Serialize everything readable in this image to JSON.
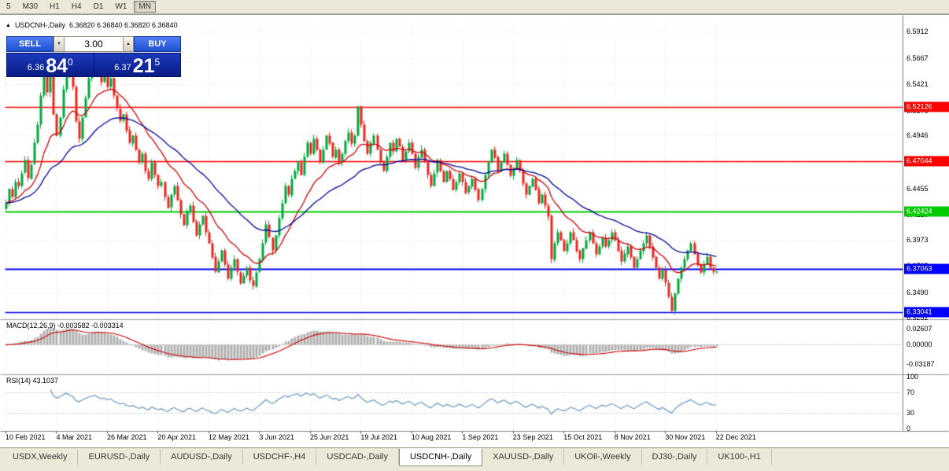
{
  "toolbar": {
    "timeframes": [
      "5",
      "M30",
      "H1",
      "H4",
      "D1",
      "W1",
      "MN"
    ],
    "active": "MN"
  },
  "chart": {
    "expand_icon": "▲",
    "title": "USDCNH-,Daily",
    "ohlc": "6.36820 6.36840 6.36820 6.36840"
  },
  "trade_panel": {
    "sell_label": "SELL",
    "buy_label": "BUY",
    "lot_value": "3.00",
    "spin_down_icon": "▼",
    "spin_up_icon": "▲",
    "sell_price": {
      "small": "6.36",
      "big": "84",
      "sup": "0"
    },
    "buy_price": {
      "small": "6.37",
      "big": "21",
      "sup": "5"
    }
  },
  "price_axis": {
    "ticks": [
      "6.5912",
      "6.5667",
      "6.5421",
      "6.5176",
      "6.4946",
      "6.4701",
      "6.4455",
      "6.4210",
      "6.3973",
      "6.3735",
      "6.3490",
      "6.3252"
    ]
  },
  "colors": {
    "up_candle": "#00a73c",
    "down_candle": "#e8261f",
    "ma_fast": "#cc0000",
    "ma_slow": "#000099",
    "macd_histogram": "#b0b0b0",
    "macd_signal": "#cc0000",
    "rsi_line": "#5b8dc0",
    "grid": "#e2e2e2"
  },
  "macd_panel": {
    "label": "MACD(12,26,9) -0.003582 -0.003314"
  },
  "rsi_panel": {
    "label": "RSI(14) 43.1037"
  },
  "tabs": [
    {
      "label": "USDX,Weekly",
      "active": false
    },
    {
      "label": "EURUSD-,Daily",
      "active": false
    },
    {
      "label": "AUDUSD-,Daily",
      "active": false
    },
    {
      "label": "USDCHF-,H4",
      "active": false
    },
    {
      "label": "USDCAD-,Daily",
      "active": false
    },
    {
      "label": "USDCNH-,Daily",
      "active": true
    },
    {
      "label": "XAUUSD-,Daily",
      "active": false
    },
    {
      "label": "UKOil-,Weekly",
      "active": false
    },
    {
      "label": "DJ30-,Daily",
      "active": false
    },
    {
      "label": "UK100-,H1",
      "active": false
    }
  ],
  "chart_data": {
    "type": "candlestick",
    "symbol": "USDCNH-",
    "timeframe": "Daily",
    "last_ohlc": {
      "open": "6.36820",
      "high": "6.36840",
      "low": "6.36820",
      "close": "6.36840"
    },
    "ylim": [
      6.3245,
      6.5995
    ],
    "x_labels": [
      "10 Feb 2021",
      "4 Mar 2021",
      "26 Mar 2021",
      "20 Apr 2021",
      "12 May 2021",
      "3 Jun 2021",
      "25 Jun 2021",
      "19 Jul 2021",
      "10 Aug 2021",
      "1 Sep 2021",
      "23 Sep 2021",
      "15 Oct 2021",
      "8 Nov 2021",
      "30 Nov 2021",
      "22 Dec 2021"
    ],
    "candles_per_label": 16,
    "closes": [
      6.432,
      6.445,
      6.438,
      6.452,
      6.448,
      6.46,
      6.472,
      6.455,
      6.468,
      6.488,
      6.505,
      6.532,
      6.565,
      6.535,
      6.555,
      6.515,
      6.495,
      6.512,
      6.538,
      6.565,
      6.552,
      6.54,
      6.508,
      6.492,
      6.512,
      6.53,
      6.548,
      6.562,
      6.57,
      6.558,
      6.545,
      6.552,
      6.54,
      6.548,
      6.532,
      6.52,
      6.509,
      6.515,
      6.5,
      6.488,
      6.495,
      6.482,
      6.47,
      6.478,
      6.462,
      6.455,
      6.47,
      6.458,
      6.448,
      6.452,
      6.438,
      6.428,
      6.44,
      6.448,
      6.435,
      6.422,
      6.412,
      6.425,
      6.43,
      6.415,
      6.402,
      6.412,
      6.42,
      6.405,
      6.395,
      6.382,
      6.368,
      6.378,
      6.388,
      6.375,
      6.362,
      6.372,
      6.38,
      6.368,
      6.358,
      6.365,
      6.372,
      6.36,
      6.355,
      6.368,
      6.38,
      6.395,
      6.412,
      6.4,
      6.388,
      6.402,
      6.418,
      6.432,
      6.448,
      6.44,
      6.455,
      6.462,
      6.47,
      6.458,
      6.475,
      6.488,
      6.478,
      6.492,
      6.482,
      6.47,
      6.482,
      6.495,
      6.488,
      6.475,
      6.482,
      6.47,
      6.478,
      6.49,
      6.498,
      6.488,
      6.495,
      6.522,
      6.505,
      6.49,
      6.478,
      6.488,
      6.495,
      6.482,
      6.47,
      6.462,
      6.475,
      6.488,
      6.48,
      6.492,
      6.485,
      6.472,
      6.48,
      6.488,
      6.478,
      6.465,
      6.475,
      6.482,
      6.47,
      6.458,
      6.448,
      6.46,
      6.472,
      6.462,
      6.452,
      6.462,
      6.455,
      6.445,
      6.452,
      6.46,
      6.452,
      6.442,
      6.448,
      6.455,
      6.445,
      6.435,
      6.445,
      6.458,
      6.47,
      6.482,
      6.475,
      6.462,
      6.47,
      6.478,
      6.468,
      6.458,
      6.465,
      6.472,
      6.462,
      6.45,
      6.44,
      6.448,
      6.455,
      6.445,
      6.432,
      6.44,
      6.43,
      6.42,
      6.38,
      6.395,
      6.405,
      6.398,
      6.388,
      6.395,
      6.405,
      6.398,
      6.388,
      6.38,
      6.39,
      6.398,
      6.405,
      6.395,
      6.385,
      6.392,
      6.4,
      6.392,
      6.398,
      6.405,
      6.398,
      6.388,
      6.378,
      6.385,
      6.392,
      6.382,
      6.372,
      6.38,
      6.388,
      6.395,
      6.402,
      6.392,
      6.382,
      6.372,
      6.362,
      6.37,
      6.358,
      6.345,
      6.332,
      6.348,
      6.362,
      6.372,
      6.38,
      6.388,
      6.395,
      6.385,
      6.375,
      6.368,
      6.375,
      6.382,
      6.372,
      6.3684,
      6.3684
    ],
    "hlines": [
      {
        "price": 6.52126,
        "label": "6.52126",
        "color": "#ff0000",
        "width": 1.5
      },
      {
        "price": 6.47044,
        "label": "6.47044",
        "color": "#ff0000",
        "width": 1.5
      },
      {
        "price": 6.42424,
        "label": "6.42424",
        "color": "#00cc00",
        "width": 2
      },
      {
        "price": 6.37063,
        "label": "6.37063",
        "color": "#0000ff",
        "width": 2
      },
      {
        "price": 6.33041,
        "label": "6.33041",
        "color": "#0000ff",
        "width": 1.5
      }
    ],
    "indicators": {
      "ma_fast": {
        "period": 16
      },
      "ma_slow": {
        "period": 40
      },
      "macd": {
        "fast": 12,
        "slow": 26,
        "signal": 9,
        "axis_ticks": [
          "0.02607",
          "0.00000",
          "-0.03187"
        ],
        "ylim": [
          -0.048,
          0.04
        ]
      },
      "rsi": {
        "period": 14,
        "value": "43.1037",
        "levels": [
          70,
          30
        ],
        "axis_ticks": [
          "100",
          "70",
          "30",
          "0"
        ],
        "ylim": [
          0,
          100
        ]
      }
    }
  }
}
